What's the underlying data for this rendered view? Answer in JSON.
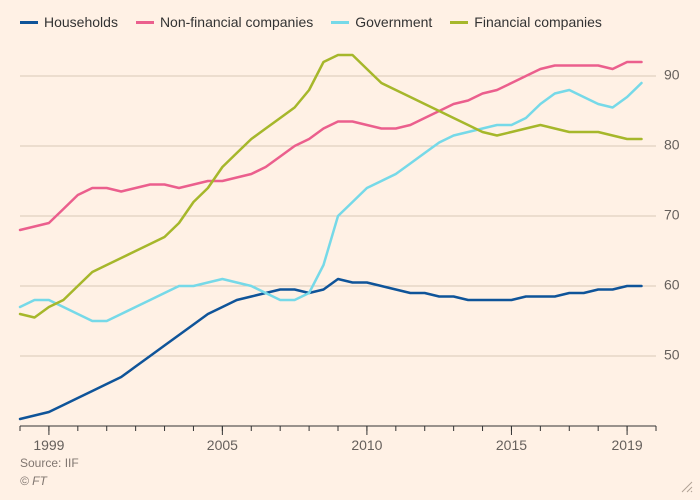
{
  "chart": {
    "type": "line",
    "background_color": "#fff1e5",
    "grid_color": "#d9c9b8",
    "axis_color": "#333333",
    "tick_label_color": "#66605c",
    "x_range": [
      1998,
      2020
    ],
    "x_major_ticks": [
      1999,
      2005,
      2010,
      2015,
      2019
    ],
    "x_minor_every": 1,
    "y_range": [
      40,
      94
    ],
    "y_ticks": [
      50,
      60,
      70,
      80,
      90
    ],
    "line_width": 2.5,
    "series": [
      {
        "name": "Households",
        "color": "#0f5499",
        "points": [
          [
            1998.0,
            41.0
          ],
          [
            1998.5,
            41.5
          ],
          [
            1999.0,
            42.0
          ],
          [
            1999.5,
            43.0
          ],
          [
            2000.0,
            44.0
          ],
          [
            2000.5,
            45.0
          ],
          [
            2001.0,
            46.0
          ],
          [
            2001.5,
            47.0
          ],
          [
            2002.0,
            48.5
          ],
          [
            2002.5,
            50.0
          ],
          [
            2003.0,
            51.5
          ],
          [
            2003.5,
            53.0
          ],
          [
            2004.0,
            54.5
          ],
          [
            2004.5,
            56.0
          ],
          [
            2005.0,
            57.0
          ],
          [
            2005.5,
            58.0
          ],
          [
            2006.0,
            58.5
          ],
          [
            2006.5,
            59.0
          ],
          [
            2007.0,
            59.5
          ],
          [
            2007.5,
            59.5
          ],
          [
            2008.0,
            59.0
          ],
          [
            2008.5,
            59.5
          ],
          [
            2009.0,
            61.0
          ],
          [
            2009.5,
            60.5
          ],
          [
            2010.0,
            60.5
          ],
          [
            2010.5,
            60.0
          ],
          [
            2011.0,
            59.5
          ],
          [
            2011.5,
            59.0
          ],
          [
            2012.0,
            59.0
          ],
          [
            2012.5,
            58.5
          ],
          [
            2013.0,
            58.5
          ],
          [
            2013.5,
            58.0
          ],
          [
            2014.0,
            58.0
          ],
          [
            2014.5,
            58.0
          ],
          [
            2015.0,
            58.0
          ],
          [
            2015.5,
            58.5
          ],
          [
            2016.0,
            58.5
          ],
          [
            2016.5,
            58.5
          ],
          [
            2017.0,
            59.0
          ],
          [
            2017.5,
            59.0
          ],
          [
            2018.0,
            59.5
          ],
          [
            2018.5,
            59.5
          ],
          [
            2019.0,
            60.0
          ],
          [
            2019.5,
            60.0
          ]
        ]
      },
      {
        "name": "Non-financial companies",
        "color": "#eb5f8d",
        "points": [
          [
            1998.0,
            68.0
          ],
          [
            1998.5,
            68.5
          ],
          [
            1999.0,
            69.0
          ],
          [
            1999.5,
            71.0
          ],
          [
            2000.0,
            73.0
          ],
          [
            2000.5,
            74.0
          ],
          [
            2001.0,
            74.0
          ],
          [
            2001.5,
            73.5
          ],
          [
            2002.0,
            74.0
          ],
          [
            2002.5,
            74.5
          ],
          [
            2003.0,
            74.5
          ],
          [
            2003.5,
            74.0
          ],
          [
            2004.0,
            74.5
          ],
          [
            2004.5,
            75.0
          ],
          [
            2005.0,
            75.0
          ],
          [
            2005.5,
            75.5
          ],
          [
            2006.0,
            76.0
          ],
          [
            2006.5,
            77.0
          ],
          [
            2007.0,
            78.5
          ],
          [
            2007.5,
            80.0
          ],
          [
            2008.0,
            81.0
          ],
          [
            2008.5,
            82.5
          ],
          [
            2009.0,
            83.5
          ],
          [
            2009.5,
            83.5
          ],
          [
            2010.0,
            83.0
          ],
          [
            2010.5,
            82.5
          ],
          [
            2011.0,
            82.5
          ],
          [
            2011.5,
            83.0
          ],
          [
            2012.0,
            84.0
          ],
          [
            2012.5,
            85.0
          ],
          [
            2013.0,
            86.0
          ],
          [
            2013.5,
            86.5
          ],
          [
            2014.0,
            87.5
          ],
          [
            2014.5,
            88.0
          ],
          [
            2015.0,
            89.0
          ],
          [
            2015.5,
            90.0
          ],
          [
            2016.0,
            91.0
          ],
          [
            2016.5,
            91.5
          ],
          [
            2017.0,
            91.5
          ],
          [
            2017.5,
            91.5
          ],
          [
            2018.0,
            91.5
          ],
          [
            2018.5,
            91.0
          ],
          [
            2019.0,
            92.0
          ],
          [
            2019.5,
            92.0
          ]
        ]
      },
      {
        "name": "Government",
        "color": "#76d9e8",
        "points": [
          [
            1998.0,
            57.0
          ],
          [
            1998.5,
            58.0
          ],
          [
            1999.0,
            58.0
          ],
          [
            1999.5,
            57.0
          ],
          [
            2000.0,
            56.0
          ],
          [
            2000.5,
            55.0
          ],
          [
            2001.0,
            55.0
          ],
          [
            2001.5,
            56.0
          ],
          [
            2002.0,
            57.0
          ],
          [
            2002.5,
            58.0
          ],
          [
            2003.0,
            59.0
          ],
          [
            2003.5,
            60.0
          ],
          [
            2004.0,
            60.0
          ],
          [
            2004.5,
            60.5
          ],
          [
            2005.0,
            61.0
          ],
          [
            2005.5,
            60.5
          ],
          [
            2006.0,
            60.0
          ],
          [
            2006.5,
            59.0
          ],
          [
            2007.0,
            58.0
          ],
          [
            2007.5,
            58.0
          ],
          [
            2008.0,
            59.0
          ],
          [
            2008.5,
            63.0
          ],
          [
            2009.0,
            70.0
          ],
          [
            2009.5,
            72.0
          ],
          [
            2010.0,
            74.0
          ],
          [
            2010.5,
            75.0
          ],
          [
            2011.0,
            76.0
          ],
          [
            2011.5,
            77.5
          ],
          [
            2012.0,
            79.0
          ],
          [
            2012.5,
            80.5
          ],
          [
            2013.0,
            81.5
          ],
          [
            2013.5,
            82.0
          ],
          [
            2014.0,
            82.5
          ],
          [
            2014.5,
            83.0
          ],
          [
            2015.0,
            83.0
          ],
          [
            2015.5,
            84.0
          ],
          [
            2016.0,
            86.0
          ],
          [
            2016.5,
            87.5
          ],
          [
            2017.0,
            88.0
          ],
          [
            2017.5,
            87.0
          ],
          [
            2018.0,
            86.0
          ],
          [
            2018.5,
            85.5
          ],
          [
            2019.0,
            87.0
          ],
          [
            2019.5,
            89.0
          ]
        ]
      },
      {
        "name": "Financial companies",
        "color": "#a6b72b",
        "points": [
          [
            1998.0,
            56.0
          ],
          [
            1998.5,
            55.5
          ],
          [
            1999.0,
            57.0
          ],
          [
            1999.5,
            58.0
          ],
          [
            2000.0,
            60.0
          ],
          [
            2000.5,
            62.0
          ],
          [
            2001.0,
            63.0
          ],
          [
            2001.5,
            64.0
          ],
          [
            2002.0,
            65.0
          ],
          [
            2002.5,
            66.0
          ],
          [
            2003.0,
            67.0
          ],
          [
            2003.5,
            69.0
          ],
          [
            2004.0,
            72.0
          ],
          [
            2004.5,
            74.0
          ],
          [
            2005.0,
            77.0
          ],
          [
            2005.5,
            79.0
          ],
          [
            2006.0,
            81.0
          ],
          [
            2006.5,
            82.5
          ],
          [
            2007.0,
            84.0
          ],
          [
            2007.5,
            85.5
          ],
          [
            2008.0,
            88.0
          ],
          [
            2008.5,
            92.0
          ],
          [
            2009.0,
            93.0
          ],
          [
            2009.5,
            93.0
          ],
          [
            2010.0,
            91.0
          ],
          [
            2010.5,
            89.0
          ],
          [
            2011.0,
            88.0
          ],
          [
            2011.5,
            87.0
          ],
          [
            2012.0,
            86.0
          ],
          [
            2012.5,
            85.0
          ],
          [
            2013.0,
            84.0
          ],
          [
            2013.5,
            83.0
          ],
          [
            2014.0,
            82.0
          ],
          [
            2014.5,
            81.5
          ],
          [
            2015.0,
            82.0
          ],
          [
            2015.5,
            82.5
          ],
          [
            2016.0,
            83.0
          ],
          [
            2016.5,
            82.5
          ],
          [
            2017.0,
            82.0
          ],
          [
            2017.5,
            82.0
          ],
          [
            2018.0,
            82.0
          ],
          [
            2018.5,
            81.5
          ],
          [
            2019.0,
            81.0
          ],
          [
            2019.5,
            81.0
          ]
        ]
      }
    ]
  },
  "footer": {
    "source_label": "Source: IIF",
    "copyright": "© FT"
  }
}
